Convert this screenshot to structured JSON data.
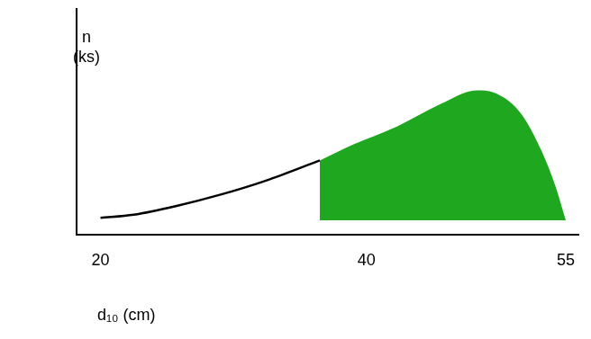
{
  "chart_data": {
    "type": "area",
    "xlabel": "d₁₀ (cm)",
    "ylabel": [
      "n",
      "(ks)"
    ],
    "x": [
      20,
      22.5,
      25.8,
      29.1,
      32.4,
      36.5,
      39,
      42.3,
      45.6,
      48.3,
      49.6,
      51.6,
      53.2,
      54.2,
      55
    ],
    "series": [
      {
        "type": "line",
        "color": "#000000",
        "values": [
          1.1,
          2.5,
          6.5,
          11.5,
          17.5,
          26.5,
          null,
          null,
          null,
          null,
          null,
          null,
          null,
          null,
          null
        ]
      },
      {
        "type": "area",
        "color": "#1fa71f",
        "values": [
          null,
          null,
          null,
          null,
          null,
          26.5,
          33.5,
          41.5,
          51.5,
          57.5,
          56.5,
          47.5,
          30.5,
          15.5,
          0
        ]
      }
    ],
    "xlim": [
      18.2,
      56
    ],
    "xticks": [
      20,
      40,
      55
    ],
    "ylim": [
      -6.5,
      93.5
    ],
    "tick_labels": "x",
    "grid": false
  }
}
